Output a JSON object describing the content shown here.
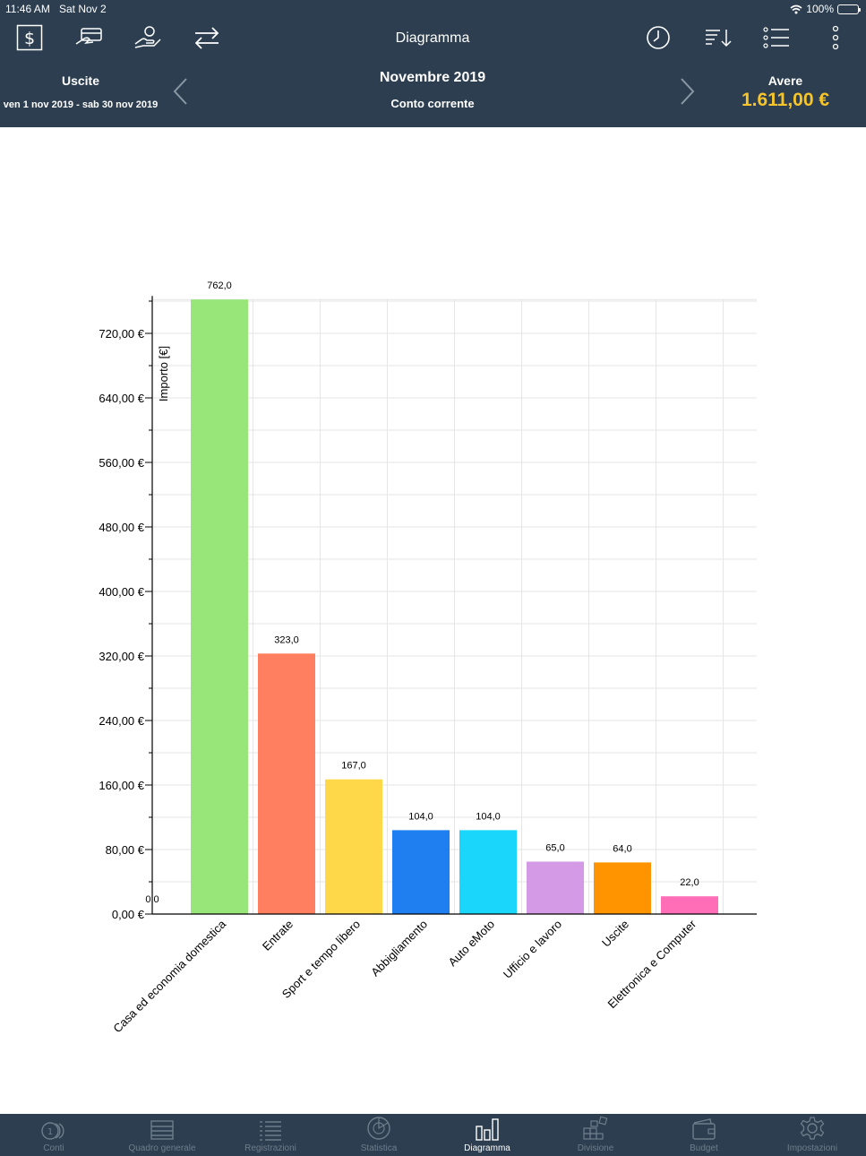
{
  "status": {
    "time": "11:46 AM",
    "date": "Sat Nov 2",
    "battery": "100%",
    "battery_level": 1.0
  },
  "header": {
    "title": "Diagramma",
    "toolbar_icons": [
      "dollar-icon",
      "card-payment-icon",
      "hand-coin-icon",
      "transfer-arrows-icon",
      "clock-icon",
      "sort-icon",
      "list-icon",
      "more-vertical-icon"
    ]
  },
  "period": {
    "left_label": "Uscite",
    "date_range": "ven 1 nov 2019 - sab 30 nov 2019",
    "month": "Novembre 2019",
    "account": "Conto corrente",
    "balance_label": "Avere",
    "balance_value": "1.611,00 €",
    "balance_color": "#f7c52a"
  },
  "chart_data": {
    "type": "bar",
    "ylabel": "Importo [€]",
    "ylim": [
      0,
      762
    ],
    "yticks": [
      "0,00 €",
      "80,00 €",
      "160,00 €",
      "240,00 €",
      "320,00 €",
      "400,00 €",
      "480,00 €",
      "560,00 €",
      "640,00 €",
      "720,00 €"
    ],
    "ytick_values": [
      0,
      80,
      160,
      240,
      320,
      400,
      480,
      560,
      640,
      720
    ],
    "zero_label": "0,0",
    "grid": true,
    "categories": [
      "Casa ed economia domestica",
      "Entrate",
      "Sport e tempo libero",
      "Abbigliamento",
      "Auto eMoto",
      "Ufficio e lavoro",
      "Uscite",
      "Elettronica e Computer"
    ],
    "values": [
      762,
      323,
      167,
      104,
      104,
      65,
      64,
      22
    ],
    "value_labels": [
      "762,0",
      "323,0",
      "167,0",
      "104,0",
      "104,0",
      "65,0",
      "64,0",
      "22,0"
    ],
    "colors": [
      "#98e67a",
      "#ff7f60",
      "#ffd84a",
      "#1f7ff0",
      "#1ad6fa",
      "#d49ae6",
      "#ff9400",
      "#ff6eb6"
    ]
  },
  "tabs": [
    {
      "label": "Conti",
      "icon": "coins-icon",
      "active": false
    },
    {
      "label": "Quadro generale",
      "icon": "overview-icon",
      "active": false
    },
    {
      "label": "Registrazioni",
      "icon": "records-list-icon",
      "active": false
    },
    {
      "label": "Statistica",
      "icon": "pie-chart-icon",
      "active": false
    },
    {
      "label": "Diagramma",
      "icon": "bar-chart-icon",
      "active": true
    },
    {
      "label": "Divisione",
      "icon": "division-icon",
      "active": false
    },
    {
      "label": "Budget",
      "icon": "wallet-icon",
      "active": false
    },
    {
      "label": "Impostazioni",
      "icon": "gear-icon",
      "active": false
    }
  ]
}
